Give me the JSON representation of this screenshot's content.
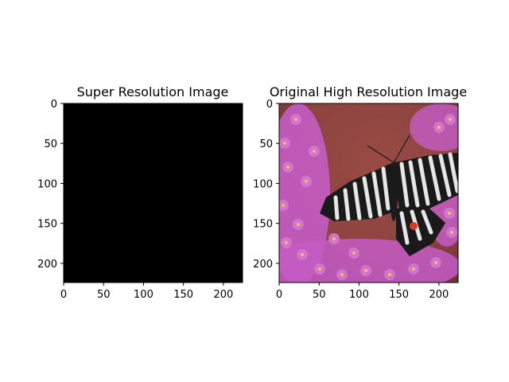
{
  "chart_data": [
    {
      "type": "image",
      "title": "Super Resolution Image",
      "image_description": "solid black",
      "fill_color": "#000000",
      "xlim": [
        0,
        224
      ],
      "ylim": [
        224,
        0
      ],
      "y_inverted": true,
      "xticks": [
        0,
        50,
        100,
        150,
        200
      ],
      "yticks": [
        0,
        50,
        100,
        150,
        200
      ]
    },
    {
      "type": "image",
      "title": "Original High Resolution Image",
      "image_description": "swallowtail butterfly on pink flowers",
      "colors": {
        "background": "#8c4440",
        "flowers": "#c45cc4",
        "flower_centers": "#e8c84a",
        "wing_dark": "#1a1a1a",
        "wing_light": "#e6e6e6",
        "wing_spot": "#d83a2a"
      },
      "xlim": [
        0,
        224
      ],
      "ylim": [
        224,
        0
      ],
      "y_inverted": true,
      "xticks": [
        0,
        50,
        100,
        150,
        200
      ],
      "yticks": [
        0,
        50,
        100,
        150,
        200
      ]
    }
  ]
}
